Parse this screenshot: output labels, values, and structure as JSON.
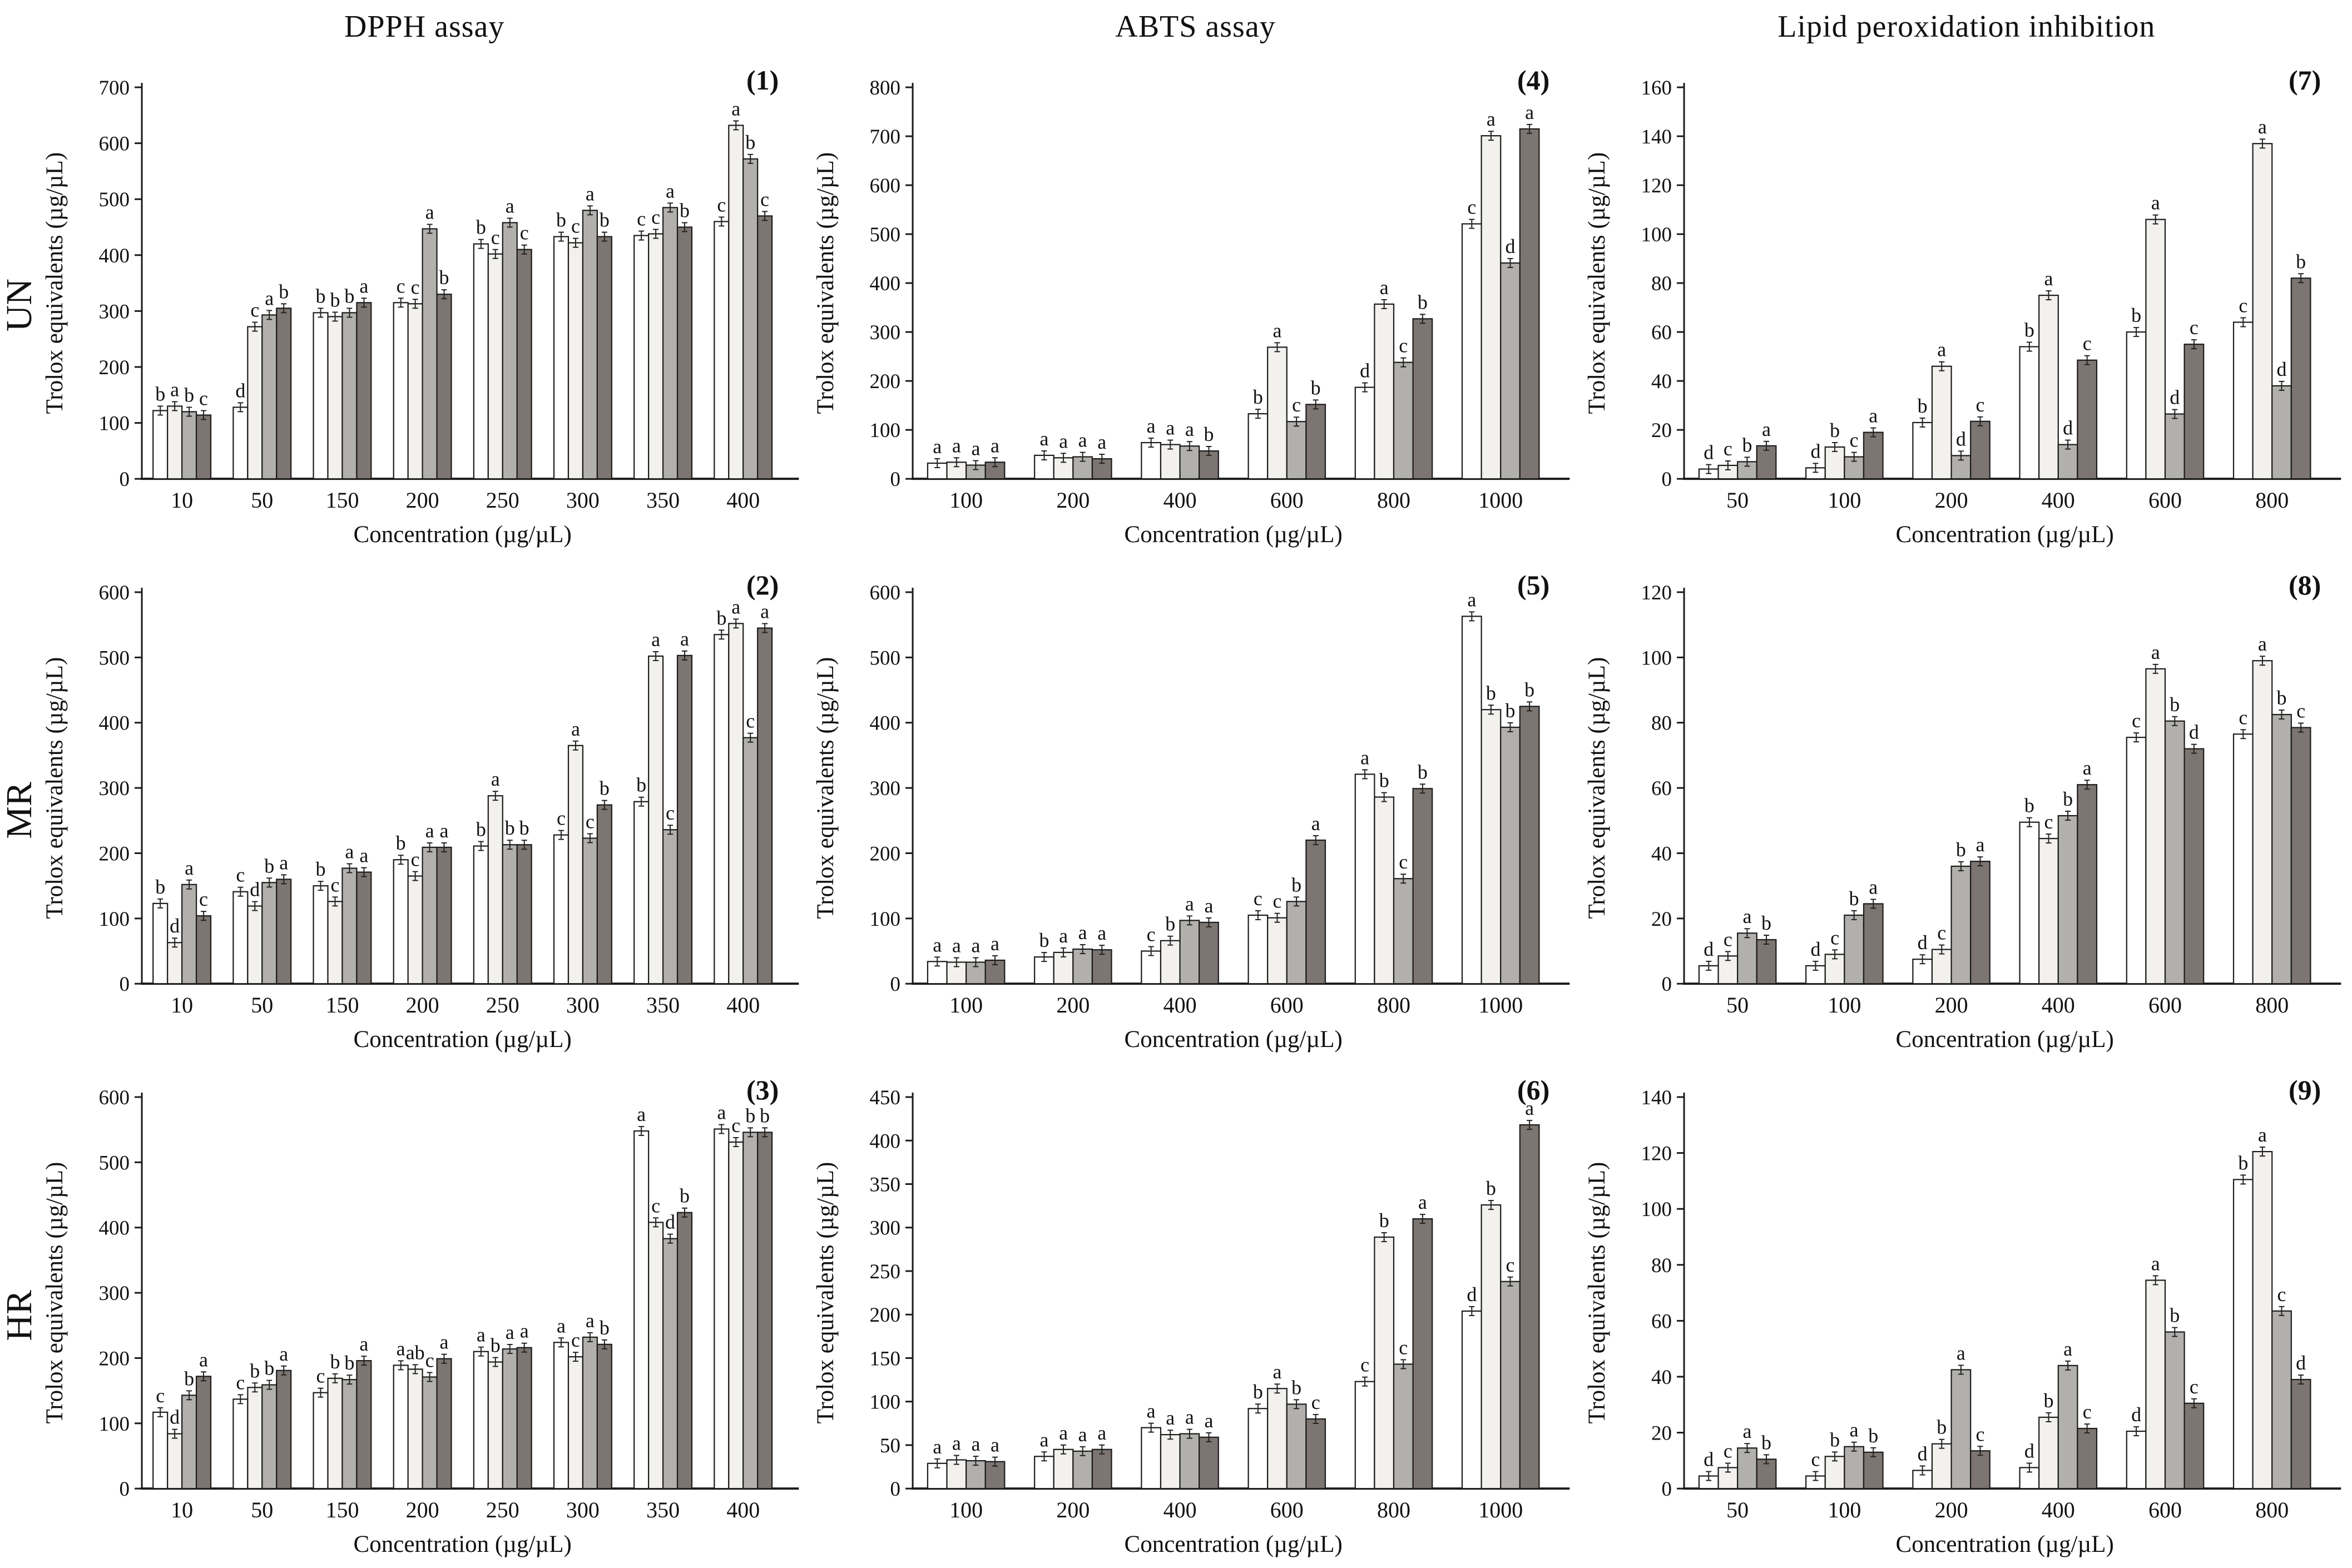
{
  "figure": {
    "column_headers": [
      "DPPH assay",
      "ABTS assay",
      "Lipid peroxidation inhibition"
    ],
    "row_labels": [
      "UN",
      "MR",
      "HR"
    ]
  },
  "series_fills": [
    "#ffffff",
    "#f2f1ee",
    "#b2b0ad",
    "#7c7571"
  ],
  "axis_color": "#1a1a1a",
  "chart_data": [
    {
      "type": "bar",
      "panel": "(1)",
      "group": "UN",
      "assay": "DPPH assay",
      "ylabel": "Trolox equivalents (µg/µL)",
      "xlabel": "Concentration (µg/µL)",
      "ylim": [
        0,
        700
      ],
      "ytick": 100,
      "categories": [
        "10",
        "50",
        "150",
        "200",
        "250",
        "300",
        "350",
        "400"
      ],
      "series": [
        {
          "name": "white",
          "values": [
            122,
            128,
            297,
            315,
            420,
            433,
            435,
            460
          ]
        },
        {
          "name": "light-gray",
          "values": [
            130,
            272,
            290,
            313,
            402,
            422,
            438,
            632
          ]
        },
        {
          "name": "gray",
          "values": [
            120,
            293,
            297,
            447,
            458,
            480,
            485,
            572
          ]
        },
        {
          "name": "dark-gray",
          "values": [
            114,
            305,
            315,
            330,
            410,
            433,
            450,
            470
          ]
        }
      ],
      "letters": [
        [
          "b",
          "a",
          "b",
          "c"
        ],
        [
          "d",
          "c",
          "a",
          "b"
        ],
        [
          "b",
          "b",
          "b",
          "a"
        ],
        [
          "c",
          "c",
          "a",
          "b"
        ],
        [
          "b",
          "c",
          "a",
          "c"
        ],
        [
          "b",
          "c",
          "a",
          "b"
        ],
        [
          "c",
          "c",
          "a",
          "b"
        ],
        [
          "c",
          "a",
          "b",
          "c"
        ]
      ]
    },
    {
      "type": "bar",
      "panel": "(2)",
      "group": "MR",
      "assay": "DPPH assay",
      "ylabel": "Trolox equivalents (µg/µL)",
      "xlabel": "Concentration (µg/µL)",
      "ylim": [
        0,
        600
      ],
      "ytick": 100,
      "categories": [
        "10",
        "50",
        "150",
        "200",
        "250",
        "300",
        "350",
        "400"
      ],
      "series": [
        {
          "name": "white",
          "values": [
            123,
            141,
            150,
            190,
            211,
            228,
            279,
            535
          ]
        },
        {
          "name": "light-gray",
          "values": [
            63,
            119,
            126,
            165,
            288,
            365,
            502,
            552
          ]
        },
        {
          "name": "gray",
          "values": [
            152,
            155,
            177,
            209,
            213,
            223,
            236,
            377
          ]
        },
        {
          "name": "dark-gray",
          "values": [
            104,
            160,
            171,
            209,
            213,
            274,
            503,
            545
          ]
        }
      ],
      "letters": [
        [
          "b",
          "d",
          "a",
          "c"
        ],
        [
          "c",
          "d",
          "b",
          "a"
        ],
        [
          "b",
          "c",
          "a",
          "a"
        ],
        [
          "b",
          "c",
          "a",
          "a"
        ],
        [
          "b",
          "a",
          "b",
          "b"
        ],
        [
          "c",
          "a",
          "c",
          "b"
        ],
        [
          "b",
          "a",
          "c",
          "a"
        ],
        [
          "b",
          "a",
          "c",
          "a"
        ]
      ]
    },
    {
      "type": "bar",
      "panel": "(3)",
      "group": "HR",
      "assay": "DPPH assay",
      "ylabel": "Trolox equivalents (µg/µL)",
      "xlabel": "Concentration (µg/µL)",
      "ylim": [
        0,
        600
      ],
      "ytick": 100,
      "categories": [
        "10",
        "50",
        "150",
        "200",
        "250",
        "300",
        "350",
        "400"
      ],
      "series": [
        {
          "name": "white",
          "values": [
            117,
            137,
            147,
            189,
            210,
            224,
            548,
            551
          ]
        },
        {
          "name": "light-gray",
          "values": [
            84,
            155,
            169,
            183,
            194,
            202,
            408,
            531
          ]
        },
        {
          "name": "gray",
          "values": [
            143,
            159,
            167,
            171,
            214,
            232,
            383,
            546
          ]
        },
        {
          "name": "dark-gray",
          "values": [
            172,
            181,
            196,
            199,
            216,
            221,
            423,
            546
          ]
        }
      ],
      "letters": [
        [
          "c",
          "d",
          "b",
          "a"
        ],
        [
          "c",
          "b",
          "b",
          "a"
        ],
        [
          "c",
          "b",
          "b",
          "a"
        ],
        [
          "a",
          "ab",
          "c",
          "a"
        ],
        [
          "a",
          "b",
          "a",
          "a"
        ],
        [
          "a",
          "c",
          "a",
          "b"
        ],
        [
          "a",
          "c",
          "d",
          "b"
        ],
        [
          "a",
          "c",
          "b",
          "b"
        ]
      ]
    },
    {
      "type": "bar",
      "panel": "(4)",
      "group": "UN",
      "assay": "ABTS assay",
      "ylabel": "Trolox equivalents (µg/µL)",
      "xlabel": "Concentration (µg/µL)",
      "ylim": [
        0,
        800
      ],
      "ytick": 100,
      "categories": [
        "100",
        "200",
        "400",
        "600",
        "800",
        "1000"
      ],
      "series": [
        {
          "name": "white",
          "values": [
            32,
            48,
            74,
            133,
            187,
            521
          ]
        },
        {
          "name": "light-gray",
          "values": [
            34,
            43,
            70,
            269,
            357,
            701
          ]
        },
        {
          "name": "gray",
          "values": [
            28,
            45,
            67,
            117,
            238,
            441
          ]
        },
        {
          "name": "dark-gray",
          "values": [
            34,
            41,
            57,
            152,
            327,
            715
          ]
        }
      ],
      "letters": [
        [
          "a",
          "a",
          "a",
          "a"
        ],
        [
          "a",
          "a",
          "a",
          "a"
        ],
        [
          "a",
          "a",
          "a",
          "b"
        ],
        [
          "b",
          "a",
          "c",
          "b"
        ],
        [
          "d",
          "a",
          "c",
          "b"
        ],
        [
          "c",
          "a",
          "d",
          "a"
        ]
      ]
    },
    {
      "type": "bar",
      "panel": "(5)",
      "group": "MR",
      "assay": "ABTS assay",
      "ylabel": "Trolox equivalents (µg/µL)",
      "xlabel": "Concentration (µg/µL)",
      "ylim": [
        0,
        600
      ],
      "ytick": 100,
      "categories": [
        "100",
        "200",
        "400",
        "600",
        "800",
        "1000"
      ],
      "series": [
        {
          "name": "white",
          "values": [
            34,
            41,
            50,
            105,
            321,
            563
          ]
        },
        {
          "name": "light-gray",
          "values": [
            33,
            48,
            66,
            101,
            286,
            420
          ]
        },
        {
          "name": "gray",
          "values": [
            33,
            53,
            97,
            126,
            161,
            393
          ]
        },
        {
          "name": "dark-gray",
          "values": [
            36,
            52,
            94,
            220,
            299,
            425
          ]
        }
      ],
      "letters": [
        [
          "a",
          "a",
          "a",
          "a"
        ],
        [
          "b",
          "a",
          "a",
          "a"
        ],
        [
          "c",
          "b",
          "a",
          "a"
        ],
        [
          "c",
          "c",
          "b",
          "a"
        ],
        [
          "a",
          "b",
          "c",
          "b"
        ],
        [
          "a",
          "b",
          "b",
          "b"
        ]
      ]
    },
    {
      "type": "bar",
      "panel": "(6)",
      "group": "HR",
      "assay": "ABTS assay",
      "ylabel": "Trolox equivalents (µg/µL)",
      "xlabel": "Concentration (µg/µL)",
      "ylim": [
        0,
        450
      ],
      "ytick": 50,
      "categories": [
        "100",
        "200",
        "400",
        "600",
        "800",
        "1000"
      ],
      "series": [
        {
          "name": "white",
          "values": [
            29,
            37,
            70,
            92,
            123,
            204
          ]
        },
        {
          "name": "light-gray",
          "values": [
            33,
            45,
            62,
            115,
            289,
            326
          ]
        },
        {
          "name": "gray",
          "values": [
            32,
            43,
            63,
            97,
            143,
            238
          ]
        },
        {
          "name": "dark-gray",
          "values": [
            31,
            45,
            59,
            80,
            310,
            418
          ]
        }
      ],
      "letters": [
        [
          "a",
          "a",
          "a",
          "a"
        ],
        [
          "a",
          "a",
          "a",
          "a"
        ],
        [
          "a",
          "a",
          "a",
          "a"
        ],
        [
          "b",
          "a",
          "b",
          "c"
        ],
        [
          "c",
          "b",
          "c",
          "a"
        ],
        [
          "d",
          "b",
          "c",
          "a"
        ]
      ]
    },
    {
      "type": "bar",
      "panel": "(7)",
      "group": "UN",
      "assay": "Lipid peroxidation inhibition",
      "ylabel": "Trolox equivalents (µg/µL)",
      "xlabel": "Concentration (µg/µL)",
      "ylim": [
        0,
        160
      ],
      "ytick": 20,
      "categories": [
        "50",
        "100",
        "200",
        "400",
        "600",
        "800"
      ],
      "series": [
        {
          "name": "white",
          "values": [
            4,
            4.5,
            23,
            54,
            60,
            64
          ]
        },
        {
          "name": "light-gray",
          "values": [
            5.5,
            13,
            46,
            75,
            106,
            137
          ]
        },
        {
          "name": "gray",
          "values": [
            7,
            9,
            9.5,
            14,
            26.5,
            38
          ]
        },
        {
          "name": "dark-gray",
          "values": [
            13.5,
            19,
            23.5,
            48.5,
            55,
            82
          ]
        }
      ],
      "letters": [
        [
          "d",
          "c",
          "b",
          "a"
        ],
        [
          "d",
          "b",
          "c",
          "a"
        ],
        [
          "b",
          "a",
          "d",
          "c"
        ],
        [
          "b",
          "a",
          "d",
          "c"
        ],
        [
          "b",
          "a",
          "d",
          "c"
        ],
        [
          "c",
          "a",
          "d",
          "b"
        ]
      ]
    },
    {
      "type": "bar",
      "panel": "(8)",
      "group": "MR",
      "assay": "Lipid peroxidation inhibition",
      "ylabel": "Trolox equivalents (µg/µL)",
      "xlabel": "Concentration (µg/µL)",
      "ylim": [
        0,
        120
      ],
      "ytick": 20,
      "categories": [
        "50",
        "100",
        "200",
        "400",
        "600",
        "800"
      ],
      "series": [
        {
          "name": "white",
          "values": [
            5.5,
            5.5,
            7.5,
            49.5,
            75.5,
            76.5
          ]
        },
        {
          "name": "light-gray",
          "values": [
            8.5,
            9,
            10.5,
            44.5,
            96.5,
            99
          ]
        },
        {
          "name": "gray",
          "values": [
            15.5,
            21,
            36,
            51.5,
            80.5,
            82.5
          ]
        },
        {
          "name": "dark-gray",
          "values": [
            13.5,
            24.5,
            37.5,
            61,
            72,
            78.5
          ]
        }
      ],
      "letters": [
        [
          "d",
          "c",
          "a",
          "b"
        ],
        [
          "d",
          "c",
          "b",
          "a"
        ],
        [
          "d",
          "c",
          "b",
          "a"
        ],
        [
          "b",
          "c",
          "b",
          "a"
        ],
        [
          "c",
          "a",
          "b",
          "d"
        ],
        [
          "c",
          "a",
          "b",
          "c"
        ]
      ]
    },
    {
      "type": "bar",
      "panel": "(9)",
      "group": "HR",
      "assay": "Lipid peroxidation inhibition",
      "ylabel": "Trolox equivalents (µg/µL)",
      "xlabel": "Concentration (µg/µL)",
      "ylim": [
        0,
        140
      ],
      "ytick": 20,
      "categories": [
        "50",
        "100",
        "200",
        "400",
        "600",
        "800"
      ],
      "series": [
        {
          "name": "white",
          "values": [
            4.5,
            4.5,
            6.5,
            7.5,
            20.5,
            110.5
          ]
        },
        {
          "name": "light-gray",
          "values": [
            7.5,
            11.5,
            16,
            25.5,
            74.5,
            120.5
          ]
        },
        {
          "name": "gray",
          "values": [
            14.5,
            15,
            42.5,
            44,
            56,
            63.5
          ]
        },
        {
          "name": "dark-gray",
          "values": [
            10.5,
            13,
            13.5,
            21.5,
            30.5,
            39
          ]
        }
      ],
      "letters": [
        [
          "d",
          "c",
          "a",
          "b"
        ],
        [
          "c",
          "b",
          "a",
          "b"
        ],
        [
          "d",
          "b",
          "a",
          "c"
        ],
        [
          "d",
          "b",
          "a",
          "c"
        ],
        [
          "d",
          "a",
          "b",
          "c"
        ],
        [
          "b",
          "a",
          "c",
          "d"
        ]
      ]
    }
  ]
}
